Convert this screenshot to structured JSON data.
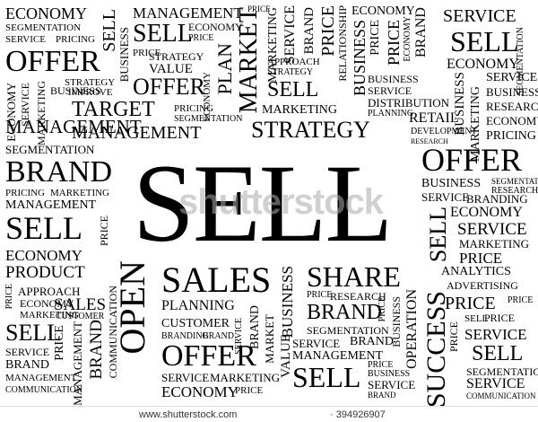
{
  "words": [
    "SELL",
    "SALES",
    "OPEN",
    "OFFER",
    "SHARE",
    "MARKET",
    "BRAND",
    "PLAN",
    "SUCCESS",
    "ECONOMY",
    "SERVICE",
    "MANAGEMENT",
    "STRATEGY",
    "TARGET",
    "PRICE",
    "MARKETING",
    "BUSINESS",
    "SEGMENTATION",
    "PRICING",
    "RESEARCH",
    "DISTRIBUTION",
    "RETAIL",
    "VALUE",
    "PRODUCT",
    "APPROACH",
    "PLANNING",
    "CUSTOMER",
    "OPERATION",
    "ANALYTICS",
    "ADVERTISING",
    "COMMUNICATION",
    "IMPROVE",
    "RELATIONSHIP",
    "DEVELOPMENT",
    "BRANDING"
  ],
  "watermark": "shutterstock",
  "footer": {
    "url": "www.shutterstock.com",
    "id": "· 394926907"
  }
}
